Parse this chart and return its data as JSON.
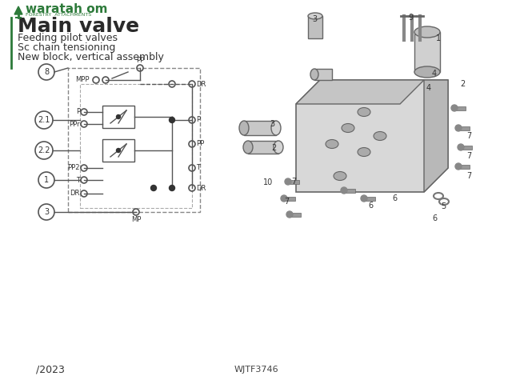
{
  "title": "Main valve",
  "subtitle_lines": [
    "Feeding pilot valves",
    "Sc chain tensioning",
    "New block, vertical assembly"
  ],
  "date_text": "/2023",
  "doc_number": "WJTF3746",
  "logo_text": "waratah om",
  "logo_subtext": "FORESTRY  ATTACHMENTS",
  "background_color": "#ffffff",
  "text_color": "#333333",
  "green_color": "#2d7a3a",
  "diagram_color": "#555555"
}
